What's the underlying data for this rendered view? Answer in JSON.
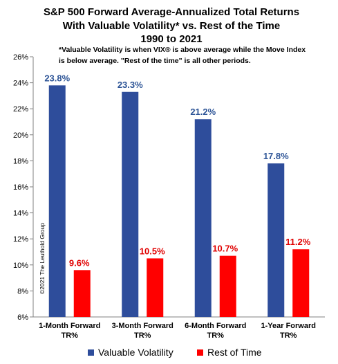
{
  "chart_data": {
    "type": "bar",
    "title_lines": [
      "S&P 500 Forward Average-Annualized Total Returns",
      "With Valuable Volatility* vs. Rest of the Time",
      "1990 to 2021"
    ],
    "note_lines": [
      "*Valuable Volatility is when VIX® is above average while the Move Index",
      "is below average. \"Rest of the time\" is all other periods."
    ],
    "categories": [
      [
        "1-Month Forward",
        "TR%"
      ],
      [
        "3-Month  Forward",
        "TR%"
      ],
      [
        "6-Month Forward",
        "TR%"
      ],
      [
        "1-Year Forward",
        "TR%"
      ]
    ],
    "series": [
      {
        "name": "Valuable Volatility",
        "color": "#2e4d9b",
        "values": [
          23.8,
          23.3,
          21.2,
          17.8
        ],
        "labels": [
          "23.8%",
          "23.3%",
          "21.2%",
          "17.8%"
        ]
      },
      {
        "name": "Rest of Time",
        "color": "#ff0000",
        "values": [
          9.6,
          10.5,
          10.7,
          11.2
        ],
        "labels": [
          "9.6%",
          "10.5%",
          "10.7%",
          "11.2%"
        ]
      }
    ],
    "ylim": [
      6,
      26
    ],
    "yticks": [
      6,
      8,
      10,
      12,
      14,
      16,
      18,
      20,
      22,
      24,
      26
    ],
    "ytick_labels": [
      "6%",
      "8%",
      "10%",
      "12%",
      "14%",
      "16%",
      "18%",
      "20%",
      "22%",
      "24%",
      "26%"
    ],
    "grid": false,
    "legend_position": "bottom",
    "copyright": "©2021 The Leuthold Group",
    "label_colors": {
      "Valuable Volatility": "#2e5597",
      "Rest of Time": "#e00000"
    }
  }
}
